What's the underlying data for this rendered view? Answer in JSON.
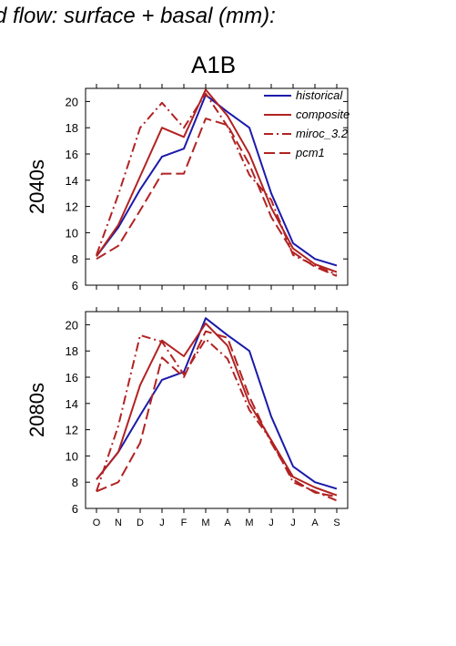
{
  "page": {
    "title": "d flow: surface + basal (mm):",
    "scenario": "A1B"
  },
  "chart_data": [
    {
      "type": "line",
      "panel_label": "2040s",
      "categories": [
        "O",
        "N",
        "D",
        "J",
        "F",
        "M",
        "A",
        "M",
        "J",
        "J",
        "A",
        "S"
      ],
      "ylim": [
        6,
        21
      ],
      "yticks": [
        6,
        8,
        10,
        12,
        14,
        16,
        18,
        20
      ],
      "series": [
        {
          "name": "historical",
          "color": "#1a1aaa",
          "dash": "solid",
          "values": [
            8.2,
            10.4,
            13.3,
            15.8,
            16.4,
            20.5,
            19.2,
            18.0,
            13.0,
            9.2,
            8.0,
            7.5
          ]
        },
        {
          "name": "composite",
          "color": "#b22222",
          "dash": "solid",
          "values": [
            8.2,
            10.6,
            14.3,
            18.0,
            17.3,
            20.9,
            18.9,
            16.0,
            11.9,
            8.8,
            7.6,
            7.0
          ]
        },
        {
          "name": "miroc_3.2",
          "color": "#b22222",
          "dash": "dashdot",
          "values": [
            8.3,
            12.9,
            18.0,
            19.9,
            18.0,
            20.6,
            18.1,
            14.4,
            12.5,
            8.3,
            7.5,
            6.8
          ]
        },
        {
          "name": "pcm1",
          "color": "#b22222",
          "dash": "dash",
          "values": [
            8.0,
            9.0,
            11.7,
            14.5,
            14.5,
            18.7,
            18.2,
            15.2,
            11.2,
            8.5,
            7.4,
            6.7
          ]
        }
      ]
    },
    {
      "type": "line",
      "panel_label": "2080s",
      "categories": [
        "O",
        "N",
        "D",
        "J",
        "F",
        "M",
        "A",
        "M",
        "J",
        "J",
        "A",
        "S"
      ],
      "ylim": [
        6,
        21
      ],
      "yticks": [
        6,
        8,
        10,
        12,
        14,
        16,
        18,
        20
      ],
      "series": [
        {
          "name": "historical",
          "color": "#1a1aaa",
          "dash": "solid",
          "values": [
            8.2,
            10.3,
            13.1,
            15.8,
            16.4,
            20.5,
            19.2,
            18.0,
            13.0,
            9.2,
            8.0,
            7.5
          ]
        },
        {
          "name": "composite",
          "color": "#b22222",
          "dash": "solid",
          "values": [
            8.2,
            10.3,
            15.4,
            18.8,
            17.6,
            20.1,
            18.4,
            14.0,
            11.2,
            8.4,
            7.6,
            7.0
          ]
        },
        {
          "name": "miroc_3.2",
          "color": "#b22222",
          "dash": "dashdot",
          "values": [
            7.3,
            12.3,
            19.2,
            18.7,
            16.2,
            18.9,
            17.4,
            13.5,
            11.2,
            8.0,
            7.3,
            6.6
          ]
        },
        {
          "name": "pcm1",
          "color": "#b22222",
          "dash": "dash",
          "values": [
            7.3,
            8.0,
            11.0,
            17.5,
            16.0,
            19.5,
            19.0,
            14.5,
            11.0,
            8.2,
            7.2,
            6.9
          ]
        }
      ]
    }
  ]
}
